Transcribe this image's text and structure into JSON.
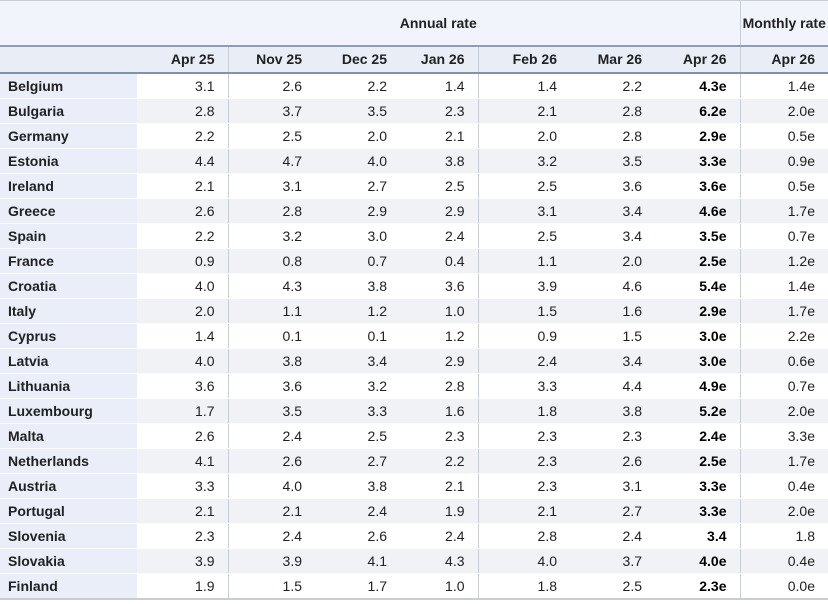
{
  "chart_data": {
    "type": "table",
    "column_groups": [
      {
        "label": "Annual rate",
        "columns": [
          "Apr 25",
          "Nov 25",
          "Dec 25",
          "Jan 26",
          "Feb 26",
          "Mar 26",
          "Apr 26"
        ]
      },
      {
        "label": "Monthly rate",
        "columns": [
          "Apr 26"
        ]
      }
    ],
    "rows": [
      {
        "country": "Belgium",
        "annual": [
          "3.1",
          "2.6",
          "2.2",
          "1.4",
          "1.4",
          "2.2",
          "4.3e"
        ],
        "monthly": "1.4e"
      },
      {
        "country": "Bulgaria",
        "annual": [
          "2.8",
          "3.7",
          "3.5",
          "2.3",
          "2.1",
          "2.8",
          "6.2e"
        ],
        "monthly": "2.0e"
      },
      {
        "country": "Germany",
        "annual": [
          "2.2",
          "2.5",
          "2.0",
          "2.1",
          "2.0",
          "2.8",
          "2.9e"
        ],
        "monthly": "0.5e"
      },
      {
        "country": "Estonia",
        "annual": [
          "4.4",
          "4.7",
          "4.0",
          "3.8",
          "3.2",
          "3.5",
          "3.3e"
        ],
        "monthly": "0.9e"
      },
      {
        "country": "Ireland",
        "annual": [
          "2.1",
          "3.1",
          "2.7",
          "2.5",
          "2.5",
          "3.6",
          "3.6e"
        ],
        "monthly": "0.5e"
      },
      {
        "country": "Greece",
        "annual": [
          "2.6",
          "2.8",
          "2.9",
          "2.9",
          "3.1",
          "3.4",
          "4.6e"
        ],
        "monthly": "1.7e"
      },
      {
        "country": "Spain",
        "annual": [
          "2.2",
          "3.2",
          "3.0",
          "2.4",
          "2.5",
          "3.4",
          "3.5e"
        ],
        "monthly": "0.7e"
      },
      {
        "country": "France",
        "annual": [
          "0.9",
          "0.8",
          "0.7",
          "0.4",
          "1.1",
          "2.0",
          "2.5e"
        ],
        "monthly": "1.2e"
      },
      {
        "country": "Croatia",
        "annual": [
          "4.0",
          "4.3",
          "3.8",
          "3.6",
          "3.9",
          "4.6",
          "5.4e"
        ],
        "monthly": "1.4e"
      },
      {
        "country": "Italy",
        "annual": [
          "2.0",
          "1.1",
          "1.2",
          "1.0",
          "1.5",
          "1.6",
          "2.9e"
        ],
        "monthly": "1.7e"
      },
      {
        "country": "Cyprus",
        "annual": [
          "1.4",
          "0.1",
          "0.1",
          "1.2",
          "0.9",
          "1.5",
          "3.0e"
        ],
        "monthly": "2.2e"
      },
      {
        "country": "Latvia",
        "annual": [
          "4.0",
          "3.8",
          "3.4",
          "2.9",
          "2.4",
          "3.4",
          "3.0e"
        ],
        "monthly": "0.6e"
      },
      {
        "country": "Lithuania",
        "annual": [
          "3.6",
          "3.6",
          "3.2",
          "2.8",
          "3.3",
          "4.4",
          "4.9e"
        ],
        "monthly": "0.7e"
      },
      {
        "country": "Luxembourg",
        "annual": [
          "1.7",
          "3.5",
          "3.3",
          "1.6",
          "1.8",
          "3.8",
          "5.2e"
        ],
        "monthly": "2.0e"
      },
      {
        "country": "Malta",
        "annual": [
          "2.6",
          "2.4",
          "2.5",
          "2.3",
          "2.3",
          "2.3",
          "2.4e"
        ],
        "monthly": "3.3e"
      },
      {
        "country": "Netherlands",
        "annual": [
          "4.1",
          "2.6",
          "2.7",
          "2.2",
          "2.3",
          "2.6",
          "2.5e"
        ],
        "monthly": "1.7e"
      },
      {
        "country": "Austria",
        "annual": [
          "3.3",
          "4.0",
          "3.8",
          "2.1",
          "2.3",
          "3.1",
          "3.3e"
        ],
        "monthly": "0.4e"
      },
      {
        "country": "Portugal",
        "annual": [
          "2.1",
          "2.1",
          "2.4",
          "1.9",
          "2.1",
          "2.7",
          "3.3e"
        ],
        "monthly": "2.0e"
      },
      {
        "country": "Slovenia",
        "annual": [
          "2.3",
          "2.4",
          "2.6",
          "2.4",
          "2.8",
          "2.4",
          "3.4"
        ],
        "monthly": "1.8"
      },
      {
        "country": "Slovakia",
        "annual": [
          "3.9",
          "3.9",
          "4.1",
          "4.3",
          "4.0",
          "3.7",
          "4.0e"
        ],
        "monthly": "0.4e"
      },
      {
        "country": "Finland",
        "annual": [
          "1.9",
          "1.5",
          "1.7",
          "1.0",
          "1.8",
          "2.5",
          "2.3e"
        ],
        "monthly": "0.0e"
      }
    ]
  },
  "colors": {
    "header_bg_top": "#f1f4fa",
    "header_bg": "#e9edf6",
    "country_cell_bg": "#e9eef8",
    "stripe_bg": "#f0f2f5",
    "heavy_border": "#8e9db3",
    "light_border": "#c6cedb",
    "outer_border": "#c9cdd3",
    "text": "#202122"
  }
}
